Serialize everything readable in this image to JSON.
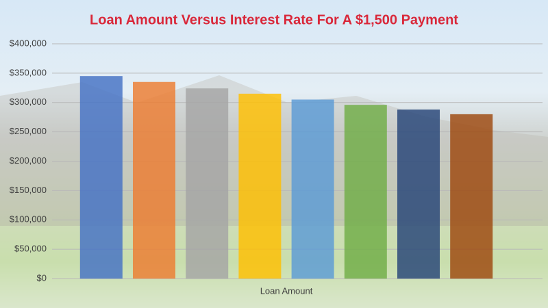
{
  "chart_data": {
    "type": "bar",
    "title": "Loan Amount Versus Interest Rate For A $1,500 Payment",
    "categories": [
      "Loan Amount"
    ],
    "series": [
      {
        "color": "#4472c4",
        "values": [
          345000
        ]
      },
      {
        "color": "#ed7d31",
        "values": [
          335000
        ]
      },
      {
        "color": "#a5a5a5",
        "values": [
          324000
        ]
      },
      {
        "color": "#ffc000",
        "values": [
          315000
        ]
      },
      {
        "color": "#5b9bd5",
        "values": [
          305000
        ]
      },
      {
        "color": "#70ad47",
        "values": [
          296000
        ]
      },
      {
        "color": "#264478",
        "values": [
          288000
        ]
      },
      {
        "color": "#9e480e",
        "values": [
          280000
        ]
      }
    ],
    "ylim": [
      0,
      400000
    ],
    "yticks": [
      {
        "value": 0,
        "label": "$0"
      },
      {
        "value": 50000,
        "label": "$50,000"
      },
      {
        "value": 100000,
        "label": "$100,000"
      },
      {
        "value": 150000,
        "label": "$150,000"
      },
      {
        "value": 200000,
        "label": "$200,000"
      },
      {
        "value": 250000,
        "label": "$250,000"
      },
      {
        "value": 300000,
        "label": "$300,000"
      },
      {
        "value": 350000,
        "label": "$350,000"
      },
      {
        "value": 400000,
        "label": "$400,000"
      }
    ],
    "grid": true
  }
}
